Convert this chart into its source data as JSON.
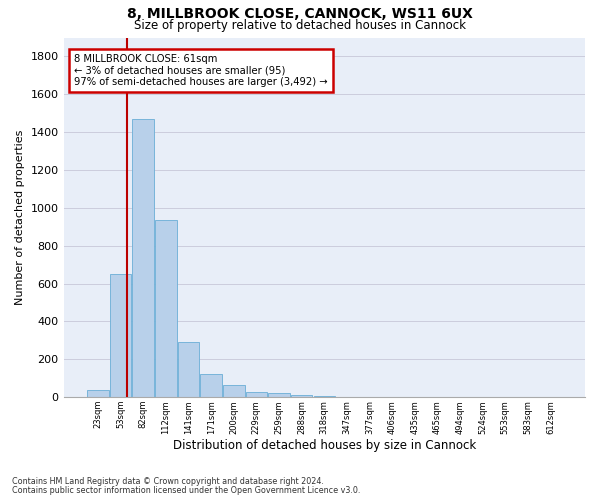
{
  "title1": "8, MILLBROOK CLOSE, CANNOCK, WS11 6UX",
  "title2": "Size of property relative to detached houses in Cannock",
  "xlabel": "Distribution of detached houses by size in Cannock",
  "ylabel": "Number of detached properties",
  "bar_labels": [
    "23sqm",
    "53sqm",
    "82sqm",
    "112sqm",
    "141sqm",
    "171sqm",
    "200sqm",
    "229sqm",
    "259sqm",
    "288sqm",
    "318sqm",
    "347sqm",
    "377sqm",
    "406sqm",
    "435sqm",
    "465sqm",
    "494sqm",
    "524sqm",
    "553sqm",
    "583sqm",
    "612sqm"
  ],
  "bar_values": [
    40,
    650,
    1470,
    935,
    290,
    125,
    65,
    25,
    20,
    10,
    5,
    0,
    0,
    0,
    0,
    0,
    0,
    0,
    0,
    0,
    0
  ],
  "bar_color": "#b8d0ea",
  "bar_edge_color": "#6aaed6",
  "background_color": "#e8eef8",
  "grid_color": "#ccccdd",
  "vline_color": "#bb0000",
  "annotation_line1": "8 MILLBROOK CLOSE: 61sqm",
  "annotation_line2": "← 3% of detached houses are smaller (95)",
  "annotation_line3": "97% of semi-detached houses are larger (3,492) →",
  "annotation_box_color": "#cc0000",
  "ylim": [
    0,
    1900
  ],
  "yticks": [
    0,
    200,
    400,
    600,
    800,
    1000,
    1200,
    1400,
    1600,
    1800
  ],
  "footnote1": "Contains HM Land Registry data © Crown copyright and database right 2024.",
  "footnote2": "Contains public sector information licensed under the Open Government Licence v3.0."
}
